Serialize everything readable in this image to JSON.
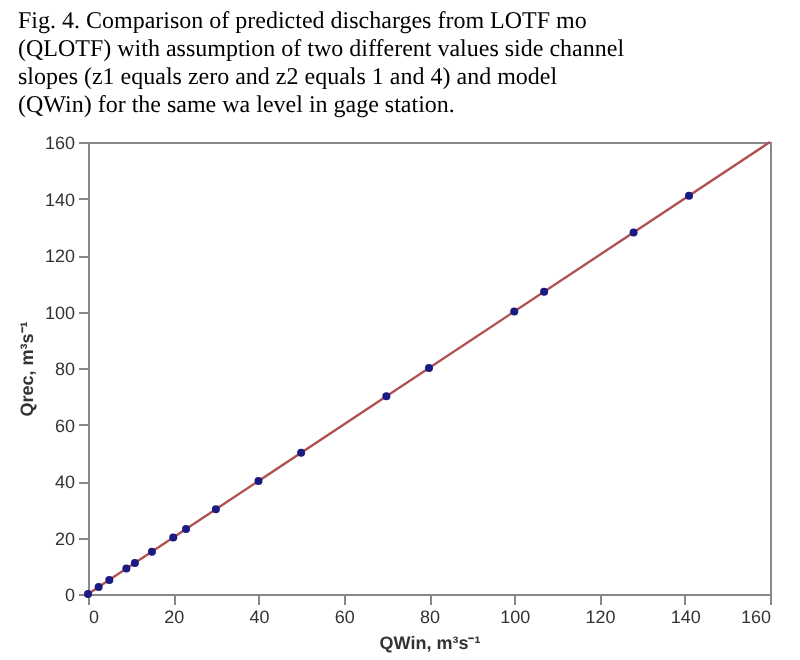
{
  "chart_data": {
    "type": "scatter",
    "title": "Fig. 4. Comparison of predicted discharges from LOTF mo (QLOTF) with assumption of two different values side channel slopes (z1 equals zero and z2 equals 1 and 4) and model (QWin) for the same wa level in gage station.",
    "xlabel": "QWin, m³s⁻¹",
    "ylabel": "Qrec, m³s⁻¹",
    "series": [
      {
        "type": "line",
        "color": "#b05050",
        "x": [
          0,
          160
        ],
        "values": [
          0,
          160
        ],
        "marker": "none"
      },
      {
        "color": "#1a1a80",
        "marker": "circle",
        "x": [
          0,
          2.5,
          5,
          9,
          11,
          15,
          20,
          23,
          30,
          40,
          50,
          70,
          80,
          100,
          107,
          128,
          141
        ],
        "values": [
          0,
          2.5,
          5,
          9,
          11,
          15,
          20,
          23,
          30,
          40,
          50,
          70,
          80,
          100,
          107,
          128,
          141
        ]
      }
    ],
    "xlim": [
      0,
      160
    ],
    "ylim": [
      0,
      160
    ],
    "xticks": [
      0,
      20,
      40,
      60,
      80,
      100,
      120,
      140,
      160
    ],
    "yticks": [
      0,
      20,
      40,
      60,
      80,
      100,
      120,
      140,
      160
    ],
    "grid": false
  }
}
